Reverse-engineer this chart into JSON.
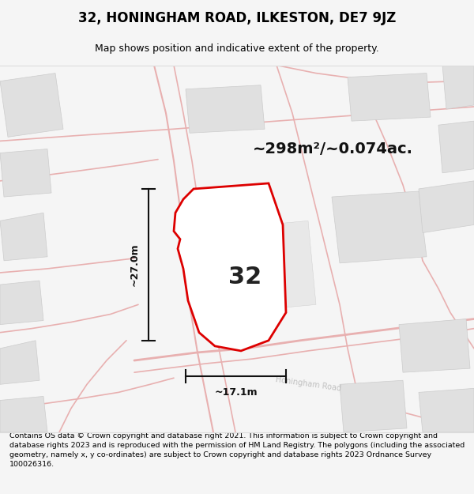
{
  "title": "32, HONINGHAM ROAD, ILKESTON, DE7 9JZ",
  "subtitle": "Map shows position and indicative extent of the property.",
  "area_text": "~298m²/~0.074ac.",
  "property_number": "32",
  "dim_width": "~17.1m",
  "dim_height": "~27.0m",
  "footer_text": "Contains OS data © Crown copyright and database right 2021. This information is subject to Crown copyright and database rights 2023 and is reproduced with the permission of HM Land Registry. The polygons (including the associated geometry, namely x, y co-ordinates) are subject to Crown copyright and database rights 2023 Ordnance Survey 100026316.",
  "bg_color": "#f5f5f5",
  "map_bg": "#ffffff",
  "road_color": "#e8b0b0",
  "property_outline_color": "#dd0000",
  "building_fill": "#e0e0e0",
  "building_edge": "#cccccc",
  "dim_color": "#111111",
  "road_label_color": "#c0c0c0",
  "area_fontsize": 14,
  "title_fontsize": 12,
  "subtitle_fontsize": 9,
  "number_fontsize": 22,
  "dim_fontsize": 9,
  "footer_fontsize": 6.8
}
